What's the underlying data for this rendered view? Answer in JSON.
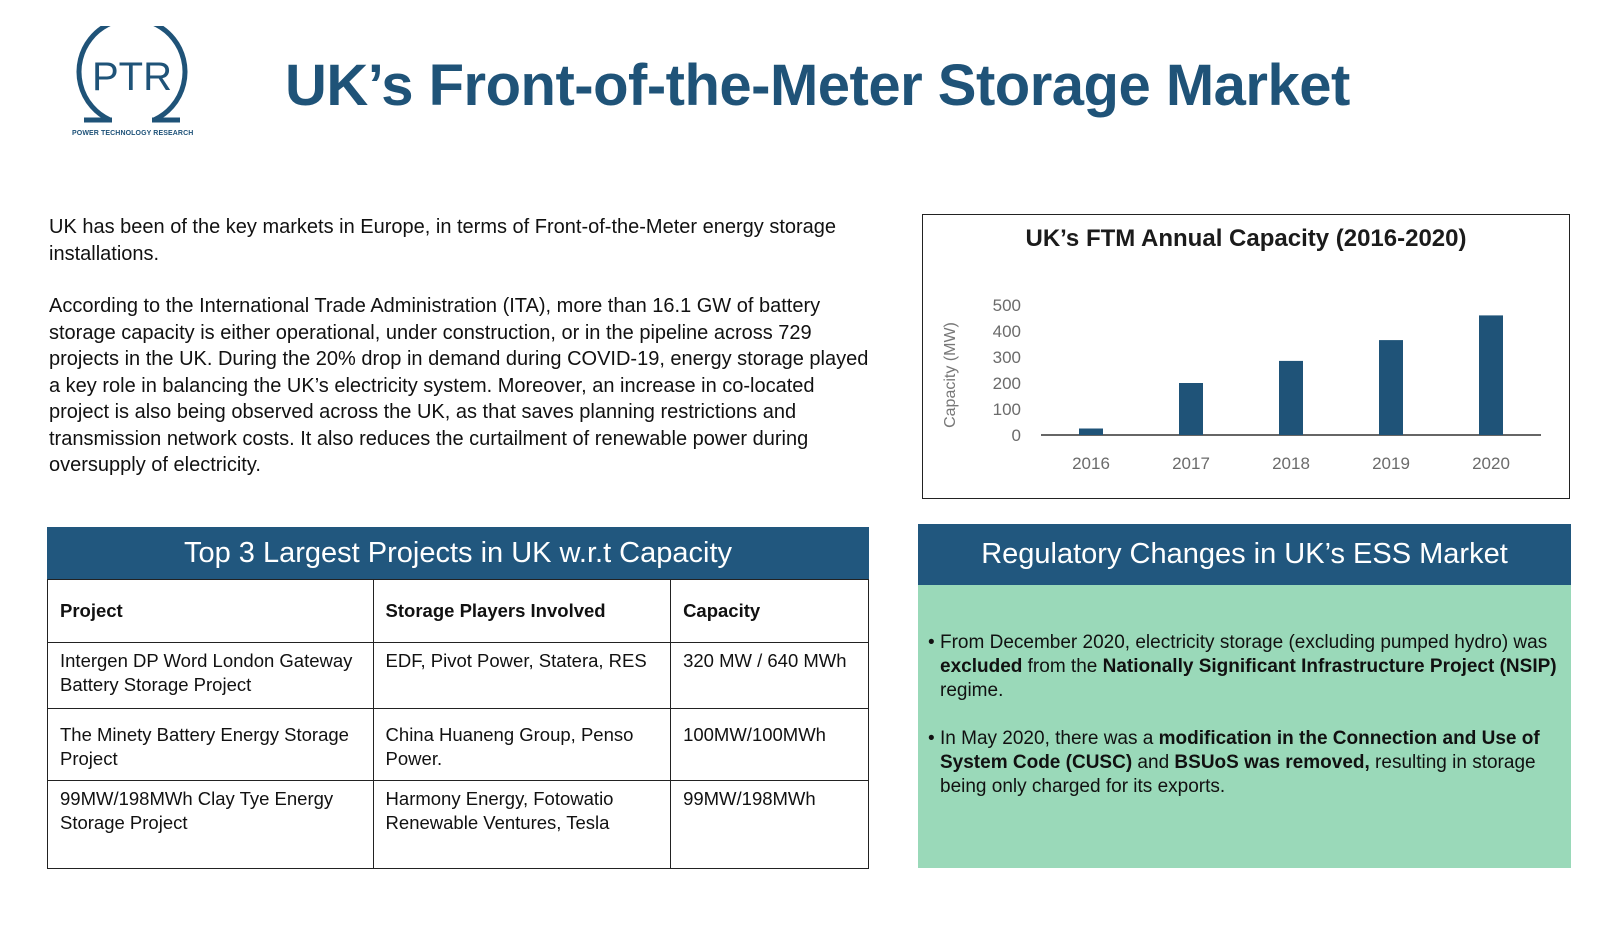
{
  "logo": {
    "text": "PTR",
    "caption": "POWER TECHNOLOGY RESEARCH",
    "color": "#1f5378"
  },
  "title": "UK’s Front-of-the-Meter Storage Market",
  "intro": {
    "p1": "UK has been of the key markets in Europe, in terms of Front-of-the-Meter energy storage installations.",
    "p2": "According to the International Trade Administration (ITA), more than 16.1 GW of battery storage capacity is either operational, under construction, or in the pipeline across 729 projects in the UK. During the 20% drop in demand during COVID-19, energy storage played a key role in balancing the UK’s electricity system.  Moreover, an increase in co-located project is also being observed across the UK, as that saves planning restrictions and transmission network costs. It also reduces the curtailment of renewable power during oversupply of electricity."
  },
  "chart_data": {
    "type": "bar",
    "title": "UK’s FTM Annual Capacity (2016-2020)",
    "ylabel": "Capacity (MW)",
    "xlabel": "",
    "categories": [
      "2016",
      "2017",
      "2018",
      "2019",
      "2020"
    ],
    "values": [
      25,
      200,
      285,
      365,
      460
    ],
    "ylim": [
      0,
      500
    ],
    "yticks": [
      "0",
      "100",
      "200",
      "300",
      "400",
      "500"
    ],
    "grid": false,
    "bar_color": "#1f5378"
  },
  "table": {
    "title": "Top 3 Largest Projects in UK w.r.t Capacity",
    "headers": [
      "Project",
      "Storage Players Involved",
      "Capacity"
    ],
    "rows": [
      [
        "Intergen DP Word London Gateway Battery Storage Project",
        "EDF, Pivot Power, Statera, RES",
        "320 MW / 640 MWh"
      ],
      [
        "The Minety Battery Energy Storage Project",
        "China Huaneng Group, Penso Power.",
        "100MW/100MWh"
      ],
      [
        "99MW/198MWh Clay Tye Energy Storage Project",
        "Harmony Energy, Fotowatio Renewable Ventures, Tesla",
        "99MW/198MWh"
      ]
    ]
  },
  "regulatory": {
    "title": "Regulatory Changes in UK’s ESS Market",
    "item1": {
      "t1": "From December 2020, electricity storage (excluding pumped hydro) was ",
      "b1": "excluded",
      "t2": " from the ",
      "b2": "Nationally Significant Infrastructure Project (NSIP)",
      "t3": " regime."
    },
    "item2": {
      "t1": "In May 2020, there was a ",
      "b1": "modification in the Connection and Use of System Code (CUSC)",
      "t2": " and ",
      "b2": "BSUoS was removed,",
      "t3": " resulting in storage being only charged for its exports."
    },
    "panel_color": "#9ad9b9",
    "header_color": "#21577e"
  }
}
